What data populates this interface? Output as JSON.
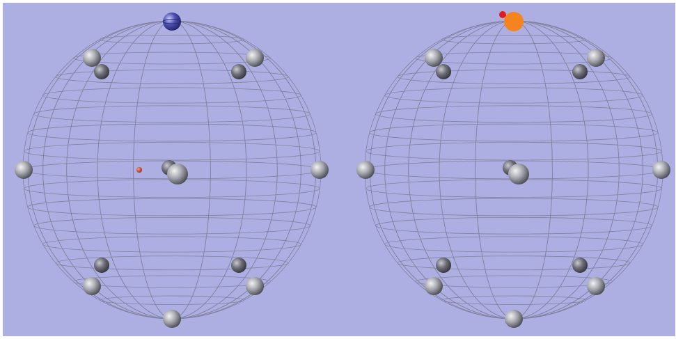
{
  "scene": {
    "background": "#adaee2",
    "mesh_color": "#7d7e98",
    "panels": [
      {
        "name": "left",
        "highlight_marker": {
          "kind": "sphere",
          "color": "#4c4fb0",
          "position": "top"
        },
        "accent_dot": {
          "color": "#c0392b",
          "position": "center-left"
        }
      },
      {
        "name": "right",
        "highlight_marker": {
          "kind": "disc",
          "color": "#f5841f",
          "position": "top"
        },
        "accent_dot": {
          "color": "#e11b1b",
          "position": "top-left-of-marker"
        }
      }
    ],
    "atom_colors": {
      "light": "#f2f2f4",
      "mid": "#a8a9b0",
      "dark": "#3c3d44"
    }
  }
}
